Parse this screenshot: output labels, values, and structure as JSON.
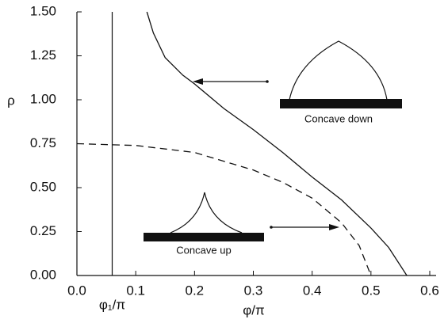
{
  "chart_data": {
    "type": "line",
    "xlabel": "φ/π",
    "ylabel": "ρ",
    "xlim": [
      0,
      0.6
    ],
    "ylim": [
      0,
      1.5
    ],
    "xticks": [
      {
        "value": 0,
        "label": "0.0"
      },
      0.1,
      0.2,
      0.3,
      0.4,
      0.5,
      0.6
    ],
    "yticks": [
      {
        "value": 0,
        "label": "0.00"
      },
      0.25,
      {
        "value": 0.5,
        "label": "0.50"
      },
      0.75,
      {
        "value": 1,
        "label": "1.00"
      },
      1.25,
      {
        "value": 1.5,
        "label": "1.50"
      }
    ],
    "series": [
      {
        "color": "#111",
        "dash": false,
        "x": [
          0.119,
          0.13,
          0.15,
          0.18,
          0.2,
          0.25,
          0.3,
          0.35,
          0.4,
          0.45,
          0.5,
          0.53,
          0.561
        ],
        "values": [
          1.5,
          1.38,
          1.24,
          1.14,
          1.09,
          0.95,
          0.83,
          0.7,
          0.56,
          0.43,
          0.27,
          0.16,
          0
        ]
      },
      {
        "color": "#111",
        "dash": true,
        "x": [
          0,
          0.1,
          0.2,
          0.3,
          0.35,
          0.4,
          0.45,
          0.48,
          0.5
        ],
        "values": [
          0.75,
          0.74,
          0.7,
          0.6,
          0.53,
          0.44,
          0.3,
          0.17,
          0
        ]
      }
    ],
    "vline": {
      "x": 0.06,
      "label": "φ₁/π"
    },
    "annotations": [
      "Concave down",
      "Concave up"
    ]
  }
}
